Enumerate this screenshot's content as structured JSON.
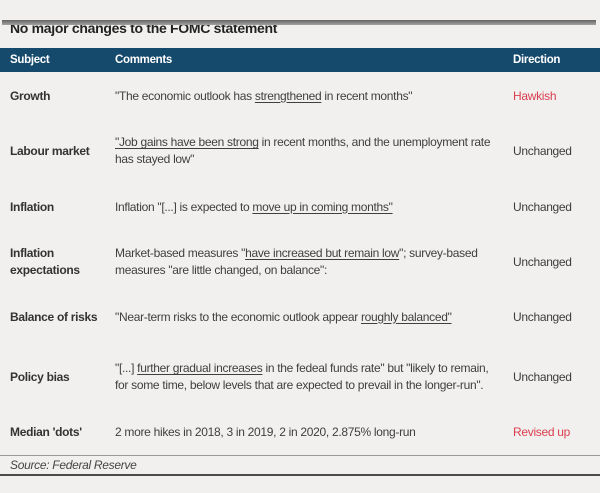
{
  "title": "No major changes to the FOMC statement",
  "source": "Source: Federal Reserve",
  "colors": {
    "header_bg": "#164a6d",
    "accent_red": "#da3e4f",
    "background": "#f1f0ee"
  },
  "table": {
    "headers": [
      "Subject",
      "Comments",
      "Direction"
    ],
    "rows": [
      {
        "subject": "Growth",
        "comment": [
          {
            "text": "\"The economic outlook has "
          },
          {
            "text": "strengthened",
            "underline": true
          },
          {
            "text": " in recent months\""
          }
        ],
        "direction": "Hawkish",
        "highlight": true
      },
      {
        "subject": "Labour market",
        "comment": [
          {
            "text": "\"Job gains have been strong",
            "underline": true
          },
          {
            "text": " in recent months, and the unemployment rate has stayed low\""
          }
        ],
        "direction": "Unchanged",
        "highlight": false
      },
      {
        "subject": "Inflation",
        "comment": [
          {
            "text": "Inflation \"[...] is expected to "
          },
          {
            "text": "move up in coming months\"",
            "underline": true
          }
        ],
        "direction": "Unchanged",
        "highlight": false
      },
      {
        "subject": "Inflation expectations",
        "comment": [
          {
            "text": "Market-based measures \""
          },
          {
            "text": "have increased but remain low",
            "underline": true
          },
          {
            "text": "\"; survey-based measures \"are little changed, on balance\":"
          }
        ],
        "direction": "Unchanged",
        "highlight": false
      },
      {
        "subject": "Balance of risks",
        "comment": [
          {
            "text": "\"Near-term risks to the economic outlook appear "
          },
          {
            "text": "roughly balanced\"",
            "underline": true
          }
        ],
        "direction": "Unchanged",
        "highlight": false
      },
      {
        "subject": "Policy bias",
        "comment": [
          {
            "text": "\"[...] "
          },
          {
            "text": "further gradual increases",
            "underline": true
          },
          {
            "text": " in the fedeal funds rate\" but \"likely to remain, for some time, below levels that are expected to prevail in the longer-run\"."
          }
        ],
        "direction": "Unchanged",
        "highlight": false
      },
      {
        "subject": "Median 'dots'",
        "comment": [
          {
            "text": "2 more hikes in 2018, 3 in 2019, 2 in 2020, 2.875% long-run"
          }
        ],
        "direction": "Revised up",
        "highlight": true
      }
    ]
  }
}
